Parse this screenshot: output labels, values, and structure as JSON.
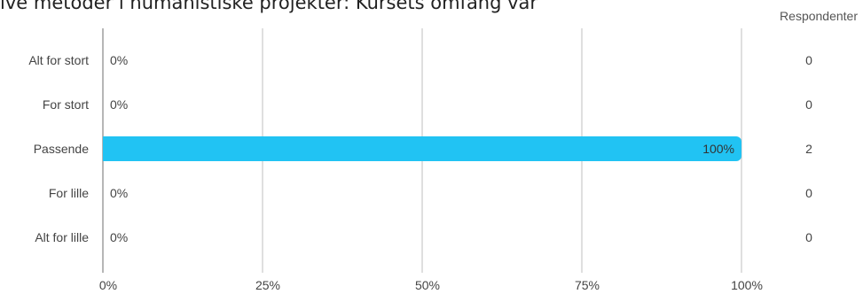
{
  "header": {
    "title": "ive metoder i humanistiske projekter: Kursets omfang var",
    "respondents_label": "Respondenter"
  },
  "colors": {
    "bar": "#21c3f3",
    "grid": "#bfbfbf",
    "axis": "#9e9e9e",
    "text": "#444444"
  },
  "chart_data": {
    "type": "bar",
    "orientation": "horizontal",
    "categories": [
      "Alt for stort",
      "For stort",
      "Passende",
      "For lille",
      "Alt for lille"
    ],
    "values": [
      0,
      0,
      100,
      0,
      0
    ],
    "value_labels": [
      "0%",
      "0%",
      "100%",
      "0%",
      "0%"
    ],
    "respondents": [
      "0",
      "0",
      "2",
      "0",
      "0"
    ],
    "xlim": [
      0,
      100
    ],
    "xticks": [
      0,
      25,
      50,
      75,
      100
    ],
    "xtick_labels": [
      "0%",
      "25%",
      "50%",
      "75%",
      "100%"
    ],
    "grid": true
  }
}
